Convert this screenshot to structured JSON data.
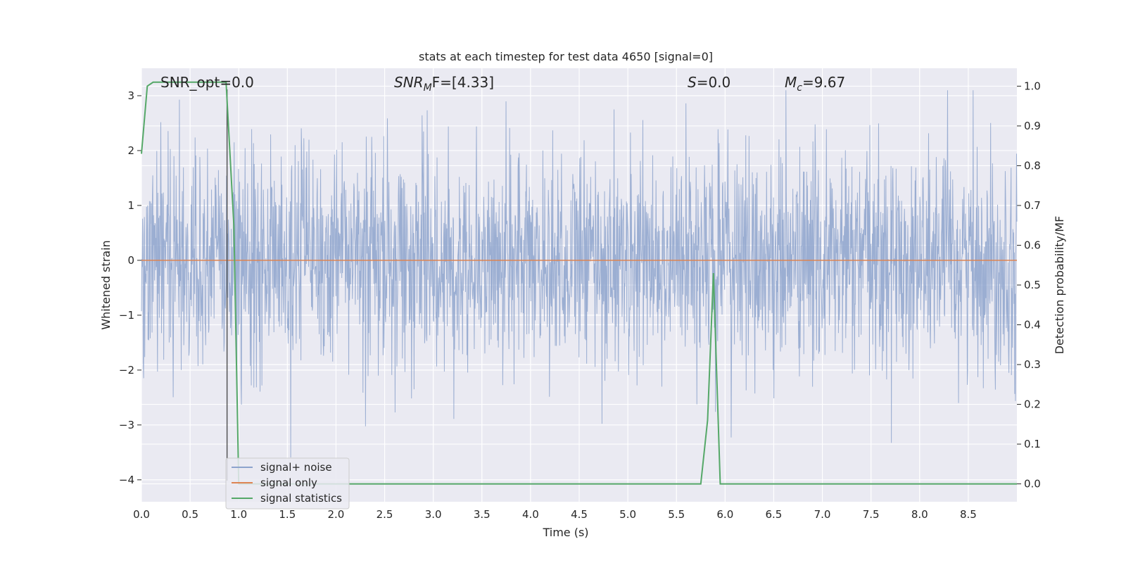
{
  "chart_data": {
    "type": "line",
    "title": "stats at each timestep for test data 4650 [signal=0]",
    "xlabel": "Time (s)",
    "ylabel": "Whitened strain",
    "y2label": "Detection probability/MF",
    "xlim": [
      0.0,
      9.0
    ],
    "ylim": [
      -4.4,
      3.5
    ],
    "y2lim": [
      -0.045,
      1.045
    ],
    "xticks": [
      "0.0",
      "0.5",
      "1.0",
      "1.5",
      "2.0",
      "2.5",
      "3.0",
      "3.5",
      "4.0",
      "4.5",
      "5.0",
      "5.5",
      "6.0",
      "6.5",
      "7.0",
      "7.5",
      "8.0",
      "8.5"
    ],
    "yticks": [
      "3",
      "2",
      "1",
      "0",
      "−1",
      "−2",
      "−3",
      "−4"
    ],
    "y2ticks": [
      "1.0",
      "0.9",
      "0.8",
      "0.7",
      "0.6",
      "0.5",
      "0.4",
      "0.3",
      "0.2",
      "0.1",
      "0.0"
    ],
    "grid": true,
    "legend_position": "lower-left",
    "annotations": {
      "snr_opt": "SNR_opt=0.0",
      "snr_mf_main": "SNR",
      "snr_mf_sub": "M",
      "snr_mf_rest": "F=[4.33]",
      "s_main": "S",
      "s_rest": "=0.0",
      "mc_main": "M",
      "mc_sub": "c",
      "mc_rest": "=9.67"
    },
    "marker_line_x": 0.88,
    "series": [
      {
        "name": "signal+ noise",
        "color": "#8da3cd",
        "kind": "noise",
        "typical_amplitude": 1.0,
        "peak_amplitude": 3.1,
        "x_range": [
          0.0,
          9.0
        ]
      },
      {
        "name": "signal only",
        "color": "#dd8452",
        "kind": "constant",
        "value": 0.0,
        "x_range": [
          0.0,
          9.0
        ]
      },
      {
        "name": "signal statistics",
        "color": "#55a868",
        "axis": "right",
        "x": [
          0.0,
          0.06,
          0.12,
          0.5,
          0.87,
          0.95,
          1.0,
          1.5,
          2.0,
          3.0,
          4.0,
          5.0,
          5.5,
          5.75,
          5.82,
          5.88,
          5.95,
          6.0,
          6.5,
          7.0,
          7.5,
          8.0,
          8.5,
          9.0
        ],
        "y": [
          0.83,
          1.0,
          1.01,
          1.01,
          1.01,
          0.65,
          0.0,
          0.0,
          0.0,
          0.0,
          0.0,
          0.0,
          0.0,
          0.0,
          0.16,
          0.53,
          0.0,
          0.0,
          0.0,
          0.0,
          0.0,
          0.0,
          0.0,
          0.0
        ]
      }
    ]
  }
}
